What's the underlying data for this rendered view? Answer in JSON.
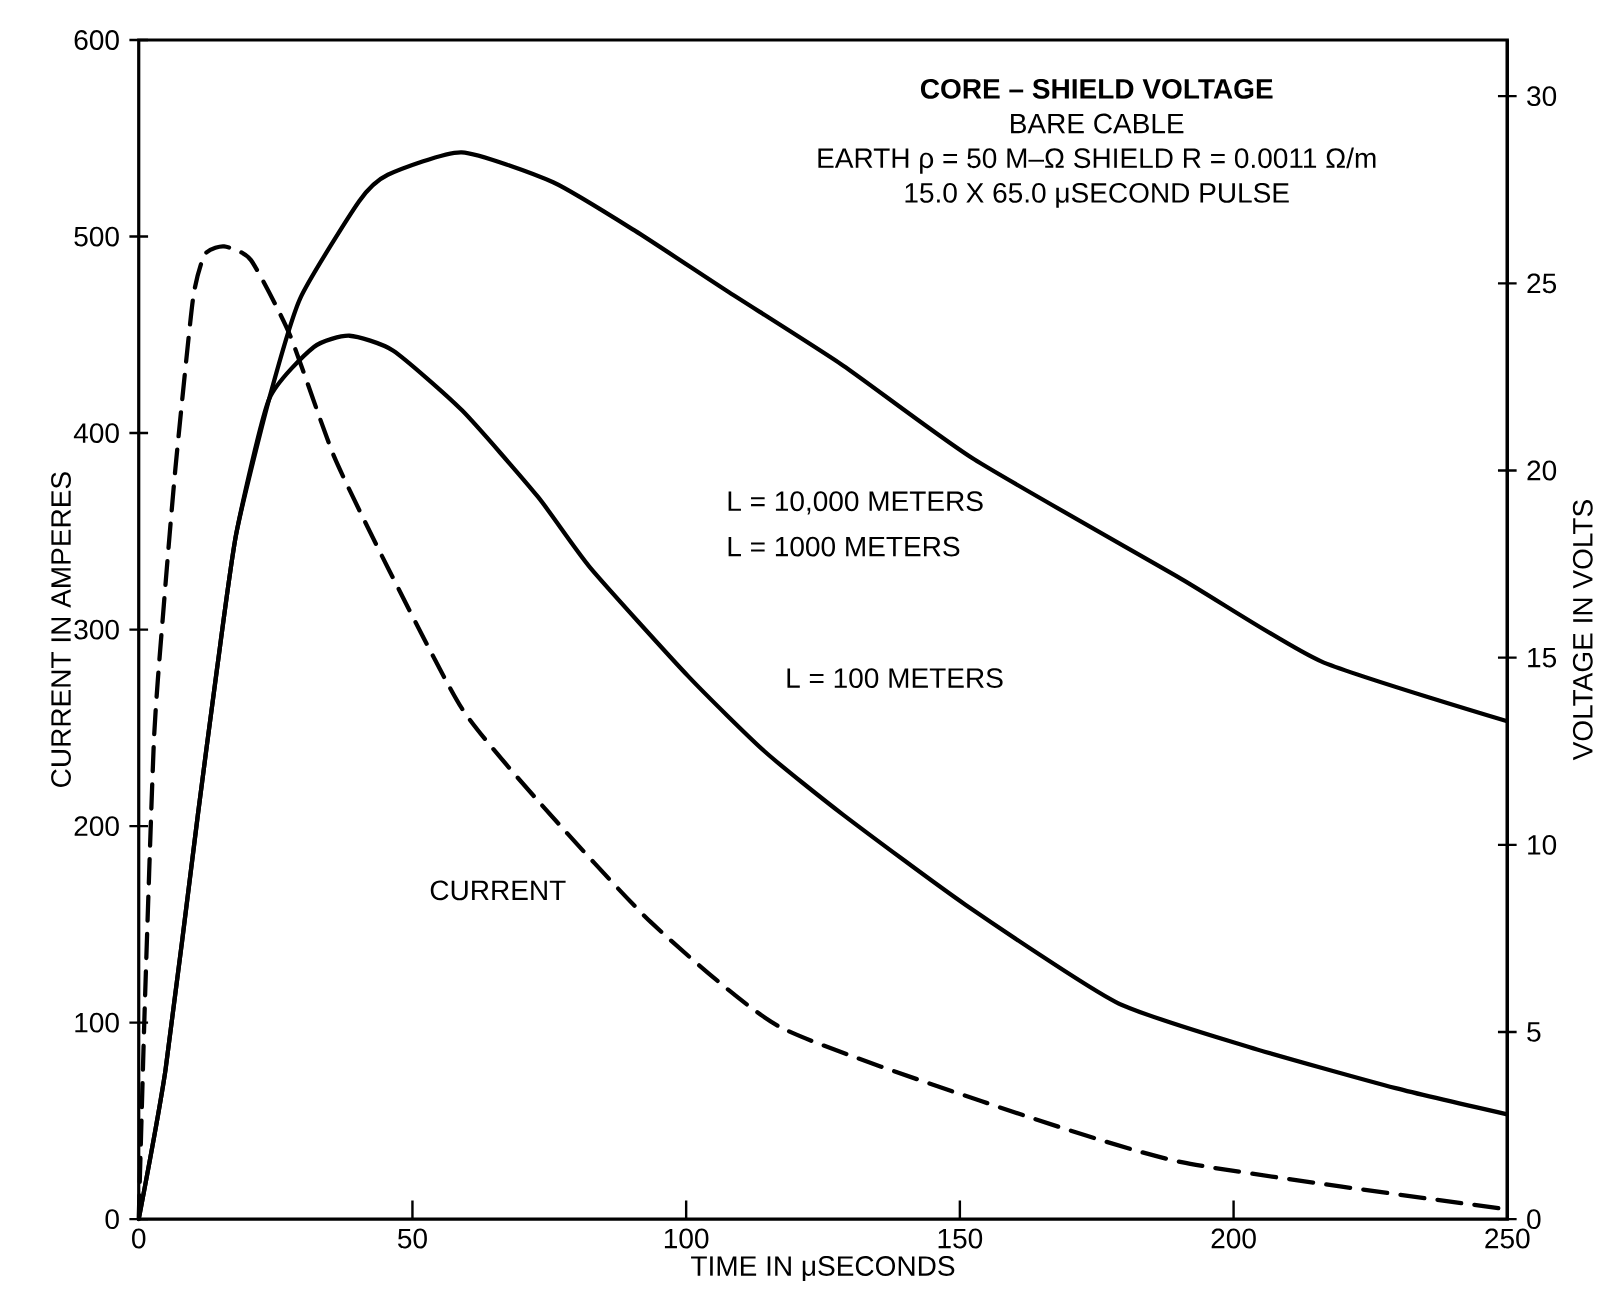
{
  "chart_data": {
    "type": "line",
    "title": "CORE – SHIELD VOLTAGE",
    "subtitle": "BARE CABLE",
    "xlabel": "TIME IN μSECONDS",
    "ylabel": "CURRENT IN AMPERES",
    "y2label": "VOLTAGE IN VOLTS",
    "xlim": [
      0,
      250
    ],
    "xticks": [
      0,
      50,
      100,
      150,
      200,
      250
    ],
    "ylim": [
      0,
      600
    ],
    "yticks": [
      0,
      100,
      200,
      300,
      400,
      500,
      600
    ],
    "y2lim": [
      0,
      31.5
    ],
    "y2ticks": [
      0,
      5,
      10,
      15,
      20,
      25,
      30
    ],
    "series": [
      {
        "name": "L = 10,000 METERS",
        "color": "#000000",
        "axis": "y2",
        "line_style": "solid",
        "x": [
          0,
          4.9,
          10.8,
          14.3,
          17.8,
          23.8,
          29.5,
          40.3,
          45.5,
          59,
          75.7,
          90.7,
          107.4,
          128.7,
          152.6,
          190.5,
          216,
          250
        ],
        "values": [
          0,
          4,
          10.8,
          14.7,
          18.3,
          21.9,
          24.6,
          27.2,
          27.9,
          28.5,
          27.7,
          26.4,
          24.8,
          22.8,
          20.3,
          17.1,
          14.9,
          13.3
        ]
      },
      {
        "name": "L = 100 METERS",
        "color": "#000000",
        "axis": "y2",
        "line_style": "solid",
        "x": [
          0,
          4.9,
          10.8,
          14.3,
          17.8,
          23.8,
          32,
          38.5,
          46.5,
          59.1,
          72.9,
          82.5,
          100.4,
          114.3,
          128.7,
          151,
          178.5,
          202.8,
          229.6,
          250
        ],
        "values": [
          0,
          4,
          10.8,
          14.7,
          18.3,
          21.9,
          23.3,
          23.6,
          23.2,
          21.6,
          19.3,
          17.4,
          14.5,
          12.5,
          10.8,
          8.4,
          5.8,
          4.6,
          3.5,
          2.8
        ]
      },
      {
        "name": "CURRENT",
        "color": "#000000",
        "axis": "y",
        "line_style": "dashed",
        "x": [
          0,
          1.1,
          2.8,
          4.6,
          6.7,
          9.9,
          12.1,
          15.6,
          20.5,
          27.6,
          35.7,
          45.6,
          59,
          72.9,
          93.6,
          117,
          154,
          190.5,
          250
        ],
        "values": [
          0,
          108,
          245,
          313,
          382,
          468,
          491,
          495,
          488,
          450,
          388,
          331,
          260,
          213,
          151,
          98,
          60,
          29,
          5
        ]
      }
    ],
    "annotations": [
      "EARTH ρ = 50 M–Ω SHIELD R = 0.0011 Ω/m",
      "15.0 X 65.0 μSECOND PULSE",
      "L = 1000 METERS"
    ],
    "grid": false
  }
}
